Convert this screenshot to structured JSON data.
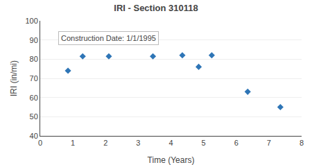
{
  "chart_data": {
    "type": "scatter",
    "title": "IRI - Section 310118",
    "xlabel": "Time (Years)",
    "ylabel": "IRI (in/mi)",
    "annotation": "Construction Date: 1/1/1995",
    "x": [
      0.85,
      1.3,
      2.1,
      3.45,
      4.35,
      4.85,
      5.25,
      6.35,
      7.35
    ],
    "values": [
      74,
      81.5,
      81.5,
      81.5,
      82,
      76,
      82,
      63,
      55
    ],
    "xlim": [
      0,
      8
    ],
    "ylim": [
      40,
      100
    ],
    "xticks": [
      0,
      1,
      2,
      3,
      4,
      5,
      6,
      7,
      8
    ],
    "yticks": [
      40,
      50,
      60,
      70,
      80,
      90,
      100
    ],
    "color": "#2E75B6",
    "marker": "diamond",
    "grid": "y"
  }
}
